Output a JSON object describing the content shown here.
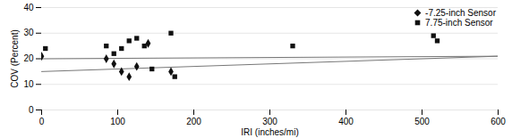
{
  "chart_data": {
    "type": "scatter",
    "title": "",
    "xlabel": "IRI (inches/mi)",
    "ylabel": "COV (Percent)",
    "xlim": [
      0,
      600
    ],
    "ylim": [
      0,
      40
    ],
    "xticks": [
      0,
      100,
      200,
      300,
      400,
      500,
      600
    ],
    "yticks": [
      0,
      10,
      20,
      30,
      40
    ],
    "grid": "y",
    "legend": "upper right",
    "series": [
      {
        "type": "line",
        "color": "#777777",
        "x": [
          0,
          600
        ],
        "values": [
          20.0,
          21.0
        ]
      },
      {
        "type": "line",
        "color": "#777777",
        "x": [
          0,
          600
        ],
        "values": [
          15.0,
          21.0
        ]
      },
      {
        "type": "scatter",
        "name": "-7.25-inch Sensor",
        "marker": "diamond",
        "color": "#111111",
        "x": [
          0,
          85,
          95,
          105,
          115,
          125,
          140,
          170
        ],
        "values": [
          21,
          20,
          18,
          15,
          13,
          17,
          26,
          15
        ]
      },
      {
        "type": "scatter",
        "name": "7.75-inch Sensor",
        "marker": "square",
        "color": "#111111",
        "x": [
          5,
          85,
          95,
          105,
          115,
          125,
          135,
          145,
          170,
          175,
          330,
          515,
          520
        ],
        "values": [
          24,
          25,
          22,
          24,
          27,
          28,
          25,
          16,
          30,
          13,
          25,
          29,
          27
        ]
      }
    ]
  }
}
